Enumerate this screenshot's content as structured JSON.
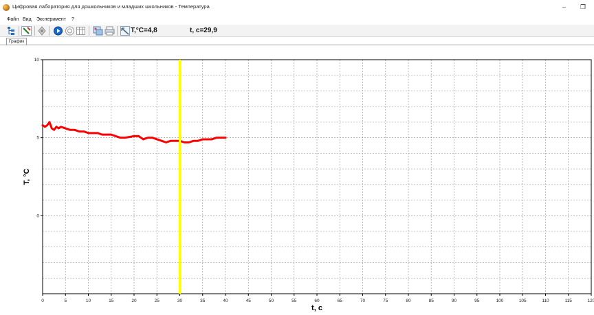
{
  "window": {
    "title": "Цифровая лаборатория для дошкольников и младших школьников - Температура",
    "minimize_glyph": "–",
    "restore_glyph": "❐"
  },
  "menu": {
    "items": [
      "Файл",
      "Вид",
      "Эксперимент",
      "?"
    ]
  },
  "toolbar": {
    "temperature_readout": "T,°C=4,8",
    "time_readout": "t, c=29,9",
    "icons": [
      "sensor-tree-icon",
      "sensor-toggle-icon",
      "settings-icon",
      "play-icon",
      "record-icon",
      "table-icon",
      "window-icon",
      "print-icon",
      "zoom-icon"
    ]
  },
  "tabs": [
    {
      "label": "График",
      "active": true
    }
  ],
  "chart_data": {
    "type": "line",
    "xlabel": "t, c",
    "ylabel": "T, °C",
    "xlim": [
      0,
      120
    ],
    "ylim": [
      -5,
      10
    ],
    "x_ticks": [
      0,
      5,
      10,
      15,
      20,
      25,
      30,
      35,
      40,
      45,
      50,
      55,
      60,
      65,
      70,
      75,
      80,
      85,
      90,
      95,
      100,
      105,
      110,
      115,
      120
    ],
    "y_ticks": [
      0,
      5,
      10
    ],
    "grid": true,
    "series": [
      {
        "color": "#ff0000",
        "x": [
          0,
          0.5,
          1.0,
          1.5,
          2.0,
          2.5,
          3.0,
          3.5,
          4.0,
          5.0,
          6.0,
          7.0,
          8.0,
          9.0,
          10.0,
          12.0,
          13.0,
          15.0,
          17.0,
          18.0,
          20.0,
          21.0,
          22.0,
          23.0,
          24.0,
          25.0,
          26.0,
          27.0,
          28.0,
          29.0,
          30.0,
          31.0,
          32.0,
          33.0,
          34.0,
          35.0,
          36.0,
          37.0,
          38.0,
          39.0,
          40.0
        ],
        "y": [
          5.8,
          5.7,
          5.8,
          6.0,
          5.6,
          5.5,
          5.7,
          5.6,
          5.7,
          5.6,
          5.5,
          5.5,
          5.4,
          5.4,
          5.3,
          5.3,
          5.2,
          5.2,
          5.0,
          5.0,
          5.1,
          5.1,
          4.9,
          5.0,
          5.0,
          4.9,
          4.8,
          4.7,
          4.8,
          4.8,
          4.8,
          4.7,
          4.7,
          4.8,
          4.8,
          4.9,
          4.9,
          4.9,
          5.0,
          5.0,
          5.0
        ]
      }
    ],
    "cursor": {
      "x": 30,
      "color": "#ffff00"
    }
  }
}
